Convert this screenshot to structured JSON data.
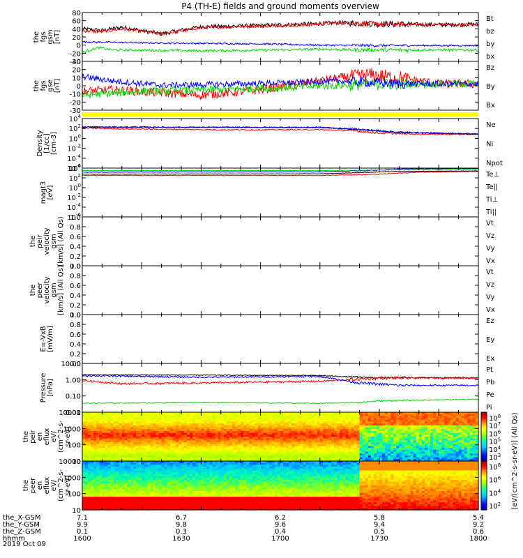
{
  "chart_data": {
    "type": "line",
    "title": "P4 (TH-E) fields and ground moments overview",
    "date_label": "2019 Oct 09",
    "x_ticks": [
      "1600",
      "1630",
      "1700",
      "1730",
      "1800"
    ],
    "x_range": [
      "1600",
      "1800"
    ],
    "orbit_rows": [
      {
        "name": "the_X-GSM",
        "values": [
          "7.1",
          "6.7",
          "6.2",
          "5.8",
          "5.4"
        ]
      },
      {
        "name": "the_Y-GSM",
        "values": [
          "9.9",
          "9.8",
          "9.6",
          "9.4",
          "9.2"
        ]
      },
      {
        "name": "the_Z-GSM",
        "values": [
          "0.1",
          "0.3",
          "0.4",
          "0.5",
          "0.6"
        ]
      },
      {
        "name": "hhmm",
        "values": [
          "1600",
          "1630",
          "1700",
          "1730",
          "1800"
        ]
      }
    ],
    "colors": {
      "black": "#000000",
      "red": "#ff0000",
      "green": "#00dd00",
      "blue": "#0000ff",
      "yellow": "#ffff00"
    },
    "panels": [
      {
        "id": "fgs-gsm",
        "ylabel": [
          "the",
          "fgs",
          "gsm",
          "[nT]"
        ],
        "scale": "linear",
        "ylim": [
          -40,
          80
        ],
        "yticks": [
          "80",
          "60",
          "40",
          "20",
          "0",
          "-20",
          "-40"
        ],
        "series": [
          {
            "name": "Bt",
            "color": "black",
            "knots": [
              [
                0,
                40
              ],
              [
                10,
                36
              ],
              [
                20,
                44
              ],
              [
                40,
                28
              ],
              [
                60,
                45
              ],
              [
                90,
                48
              ],
              [
                115,
                52
              ],
              [
                130,
                55
              ],
              [
                150,
                52
              ],
              [
                180,
                50
              ],
              [
                200,
                51
              ]
            ],
            "noise": 5
          },
          {
            "name": "bz",
            "color": "red",
            "knots": [
              [
                0,
                35
              ],
              [
                10,
                33
              ],
              [
                20,
                40
              ],
              [
                40,
                27
              ],
              [
                60,
                43
              ],
              [
                90,
                47
              ],
              [
                115,
                50
              ],
              [
                130,
                55
              ],
              [
                150,
                52
              ],
              [
                180,
                50
              ],
              [
                200,
                50
              ]
            ],
            "noise": 4
          },
          {
            "name": "by",
            "color": "blue",
            "knots": [
              [
                0,
                8
              ],
              [
                40,
                5
              ],
              [
                90,
                3
              ],
              [
                120,
                0
              ],
              [
                150,
                -1
              ],
              [
                200,
                -1
              ]
            ],
            "noise": 2
          },
          {
            "name": "bx",
            "color": "green",
            "knots": [
              [
                0,
                -18
              ],
              [
                8,
                -6
              ],
              [
                15,
                -12
              ],
              [
                60,
                -14
              ],
              [
                100,
                -12
              ],
              [
                120,
                -10
              ],
              [
                140,
                -12
              ],
              [
                200,
                -12
              ]
            ],
            "noise": 3
          }
        ]
      },
      {
        "id": "fgs-gse",
        "ylabel": [
          "the",
          "fgs",
          "gse",
          "[nT]"
        ],
        "scale": "linear",
        "ylim": [
          -35,
          30
        ],
        "yticks": [
          "30",
          "20",
          "10",
          "0",
          "-10",
          "-20",
          "-30"
        ],
        "series": [
          {
            "name": "Bz",
            "color": "red",
            "knots": [
              [
                0,
                -10
              ],
              [
                15,
                -8
              ],
              [
                30,
                -10
              ],
              [
                60,
                -15
              ],
              [
                90,
                -8
              ],
              [
                110,
                0
              ],
              [
                130,
                8
              ],
              [
                145,
                12
              ],
              [
                160,
                8
              ],
              [
                180,
                0
              ],
              [
                200,
                0
              ]
            ],
            "noise": 6
          },
          {
            "name": "By",
            "color": "green",
            "knots": [
              [
                0,
                -15
              ],
              [
                30,
                -10
              ],
              [
                60,
                -8
              ],
              [
                100,
                -5
              ],
              [
                130,
                -2
              ],
              [
                160,
                0
              ],
              [
                200,
                0
              ]
            ],
            "noise": 5
          },
          {
            "name": "Bx",
            "color": "blue",
            "knots": [
              [
                0,
                10
              ],
              [
                15,
                4
              ],
              [
                40,
                -2
              ],
              [
                80,
                0
              ],
              [
                110,
                2
              ],
              [
                130,
                4
              ],
              [
                160,
                0
              ],
              [
                200,
                0
              ]
            ],
            "noise": 4
          }
        ]
      },
      {
        "id": "density",
        "ylabel": [
          "Density",
          "[1/cc]",
          "[cm-3]"
        ],
        "scale": "log",
        "ylim": [
          -8,
          4
        ],
        "yticks": [
          "10",
          "10",
          "10",
          "10",
          "10",
          "10"
        ],
        "ytick_exps": [
          "4",
          "2",
          "0",
          "-2",
          "-4",
          "-6"
        ],
        "series": [
          {
            "name": "Ne",
            "color": "red",
            "knots": [
              [
                0,
                1.7
              ],
              [
                20,
                1.5
              ],
              [
                70,
                1.3
              ],
              [
                120,
                1.3
              ],
              [
                135,
                1.1
              ],
              [
                150,
                0.5
              ],
              [
                170,
                0.2
              ],
              [
                200,
                0.2
              ]
            ],
            "noise": 0.15
          },
          {
            "name": "Ni",
            "color": "black",
            "knots": [
              [
                0,
                1.9
              ],
              [
                60,
                1.9
              ],
              [
                120,
                1.8
              ],
              [
                140,
                1.3
              ],
              [
                160,
                0.6
              ],
              [
                200,
                0.2
              ]
            ],
            "noise": 0.1
          },
          {
            "name": "Npot",
            "color": "blue",
            "knots": [
              [
                0,
                2.0
              ],
              [
                60,
                1.9
              ],
              [
                120,
                1.9
              ],
              [
                140,
                1.4
              ],
              [
                160,
                0.7
              ],
              [
                200,
                0.3
              ]
            ],
            "noise": 0.15
          }
        ]
      },
      {
        "id": "temperature",
        "ylabel": [
          "magt3",
          "[eV]"
        ],
        "scale": "log",
        "ylim": [
          -8,
          4
        ],
        "yticks": [
          "10",
          "10",
          "10",
          "10",
          "10",
          "10"
        ],
        "ytick_exps": [
          "4",
          "2",
          "0",
          "-2",
          "-4",
          "-6"
        ],
        "series": [
          {
            "name": "Te⊥",
            "color": "red",
            "knots": [
              [
                0,
                2.2
              ],
              [
                120,
                2.2
              ],
              [
                150,
                2.5
              ],
              [
                170,
                3.0
              ],
              [
                200,
                3.2
              ]
            ],
            "noise": 0.08
          },
          {
            "name": "Te||",
            "color": "black",
            "knots": [
              [
                0,
                2.5
              ],
              [
                120,
                2.6
              ],
              [
                160,
                3.2
              ],
              [
                200,
                3.3
              ]
            ],
            "noise": 0.05
          },
          {
            "name": "Ti⊥",
            "color": "blue",
            "knots": [
              [
                0,
                3.0
              ],
              [
                120,
                3.1
              ],
              [
                150,
                3.5
              ],
              [
                160,
                3.8
              ],
              [
                200,
                3.9
              ]
            ],
            "noise": 0.08
          },
          {
            "name": "Ti||",
            "color": "green",
            "knots": [
              [
                0,
                3.4
              ],
              [
                120,
                3.4
              ],
              [
                160,
                3.6
              ],
              [
                200,
                3.7
              ]
            ],
            "noise": 0.04
          }
        ]
      },
      {
        "id": "peir-velocity",
        "ylabel": [
          "the",
          "peir",
          "velocity",
          "gsm",
          "[km/s] (All Qs)"
        ],
        "scale": "linear",
        "ylim": [
          0,
          1
        ],
        "yticks": [
          "1.0",
          "0.8",
          "0.6",
          "0.4",
          "0.2",
          "0.0"
        ],
        "series": [
          {
            "name": "Vt",
            "color": "black",
            "knots": []
          },
          {
            "name": "Vz",
            "color": "red",
            "knots": []
          },
          {
            "name": "Vy",
            "color": "green",
            "knots": []
          },
          {
            "name": "Vx",
            "color": "blue",
            "knots": []
          }
        ]
      },
      {
        "id": "peer-velocity",
        "ylabel": [
          "the",
          "peer",
          "velocity",
          "gsm",
          "[km/s] (All Qs)"
        ],
        "scale": "linear",
        "ylim": [
          0,
          1
        ],
        "yticks": [
          "1.0",
          "0.8",
          "0.6",
          "0.4",
          "0.2",
          "0.0"
        ],
        "series": [
          {
            "name": "Vt",
            "color": "black",
            "knots": []
          },
          {
            "name": "Vz",
            "color": "red",
            "knots": []
          },
          {
            "name": "Vy",
            "color": "green",
            "knots": []
          },
          {
            "name": "Vx",
            "color": "blue",
            "knots": []
          }
        ]
      },
      {
        "id": "efield",
        "ylabel": [
          "E=-VxB",
          "[mV/m]"
        ],
        "scale": "linear",
        "ylim": [
          0,
          1
        ],
        "yticks": [
          "1.0",
          "0.8",
          "0.6",
          "0.4",
          "0.2",
          "0.0"
        ],
        "series": [
          {
            "name": "Ez",
            "color": "red",
            "knots": []
          },
          {
            "name": "Ey",
            "color": "green",
            "knots": []
          },
          {
            "name": "Ex",
            "color": "blue",
            "knots": []
          }
        ]
      },
      {
        "id": "pressure",
        "ylabel": [
          "Pressure",
          "[nPa]"
        ],
        "scale": "log",
        "ylim": [
          -2,
          1
        ],
        "yticks": [
          "10.00",
          "1.00",
          "0.10",
          "0.01"
        ],
        "series": [
          {
            "name": "Pt",
            "color": "black",
            "knots": [
              [
                0,
                0.3
              ],
              [
                60,
                0.28
              ],
              [
                120,
                0.25
              ],
              [
                140,
                0.15
              ],
              [
                150,
                0.12
              ],
              [
                200,
                0.12
              ]
            ],
            "noise": 0.03
          },
          {
            "name": "Pb",
            "color": "red",
            "knots": [
              [
                0,
                -0.05
              ],
              [
                20,
                -0.25
              ],
              [
                60,
                -0.2
              ],
              [
                90,
                -0.15
              ],
              [
                120,
                -0.1
              ],
              [
                135,
                0.0
              ],
              [
                150,
                0.1
              ],
              [
                200,
                0.1
              ]
            ],
            "noise": 0.06
          },
          {
            "name": "Pe",
            "color": "green",
            "knots": [
              [
                0,
                -1.45
              ],
              [
                60,
                -1.4
              ],
              [
                120,
                -1.45
              ],
              [
                140,
                -1.4
              ],
              [
                150,
                -1.3
              ],
              [
                200,
                -1.2
              ]
            ],
            "noise": 0.03
          },
          {
            "name": "Pi",
            "color": "blue",
            "knots": [
              [
                0,
                0.25
              ],
              [
                60,
                0.15
              ],
              [
                120,
                0.2
              ],
              [
                140,
                -0.2
              ],
              [
                160,
                -0.35
              ],
              [
                200,
                -0.35
              ]
            ],
            "noise": 0.05
          }
        ]
      },
      {
        "id": "peir-eflux",
        "ylabel": [
          "the",
          "peir",
          "en",
          "eflux",
          "eV/",
          "(cm^2-s-",
          "sr-eV)"
        ],
        "scale": "log",
        "ylim": [
          0.8,
          4.2
        ],
        "yticks": [
          "10000",
          "1000",
          "100",
          "10"
        ],
        "kind": "spectrogram"
      },
      {
        "id": "peer-eflux",
        "ylabel": [
          "the",
          "peer",
          "en",
          "eflux",
          "eV/",
          "(cm^2-s-",
          "sr-eV)"
        ],
        "scale": "log",
        "ylim": [
          0.8,
          4.2
        ],
        "yticks": [
          "10000",
          "1000",
          "100",
          "10"
        ],
        "kind": "spectrogram"
      }
    ],
    "colorbar": {
      "label": "[eV/(cm^2-s-sr-eV)] (All Qs)",
      "upper_exps": [
        "8",
        "7",
        "6",
        "5",
        "4",
        "3"
      ],
      "lower_exps": [
        "8",
        "6",
        "4",
        "2"
      ],
      "base": "10"
    }
  }
}
